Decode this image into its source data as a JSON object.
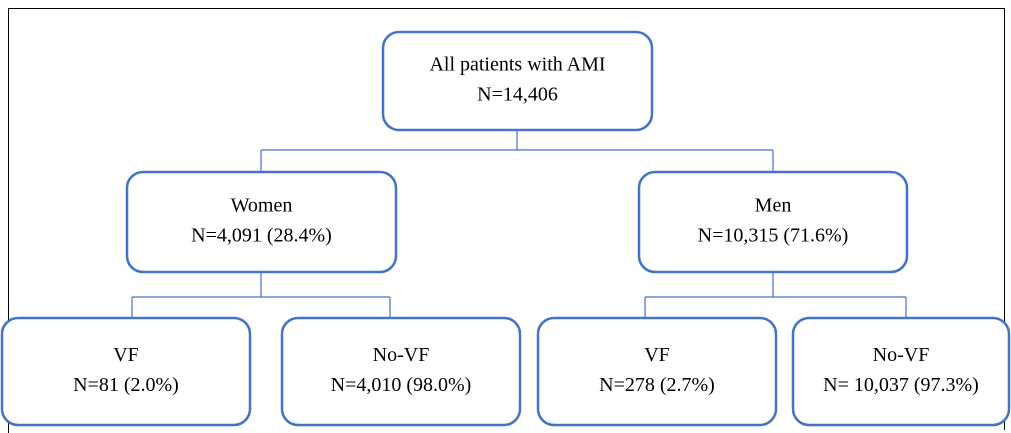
{
  "nodes": [
    {
      "label": "All patients with AMI",
      "count": "N=14,406"
    },
    {
      "label": "Women",
      "count": "N=4,091 (28.4%)"
    },
    {
      "label": "Men",
      "count": "N=10,315 (71.6%)"
    },
    {
      "label": "VF",
      "count": "N=81 (2.0%)"
    },
    {
      "label": "No-VF",
      "count": "N=4,010 (98.0%)"
    },
    {
      "label": "VF",
      "count": "N=278 (2.7%)"
    },
    {
      "label": "No-VF",
      "count": "N= 10,037 (97.3%)"
    }
  ]
}
